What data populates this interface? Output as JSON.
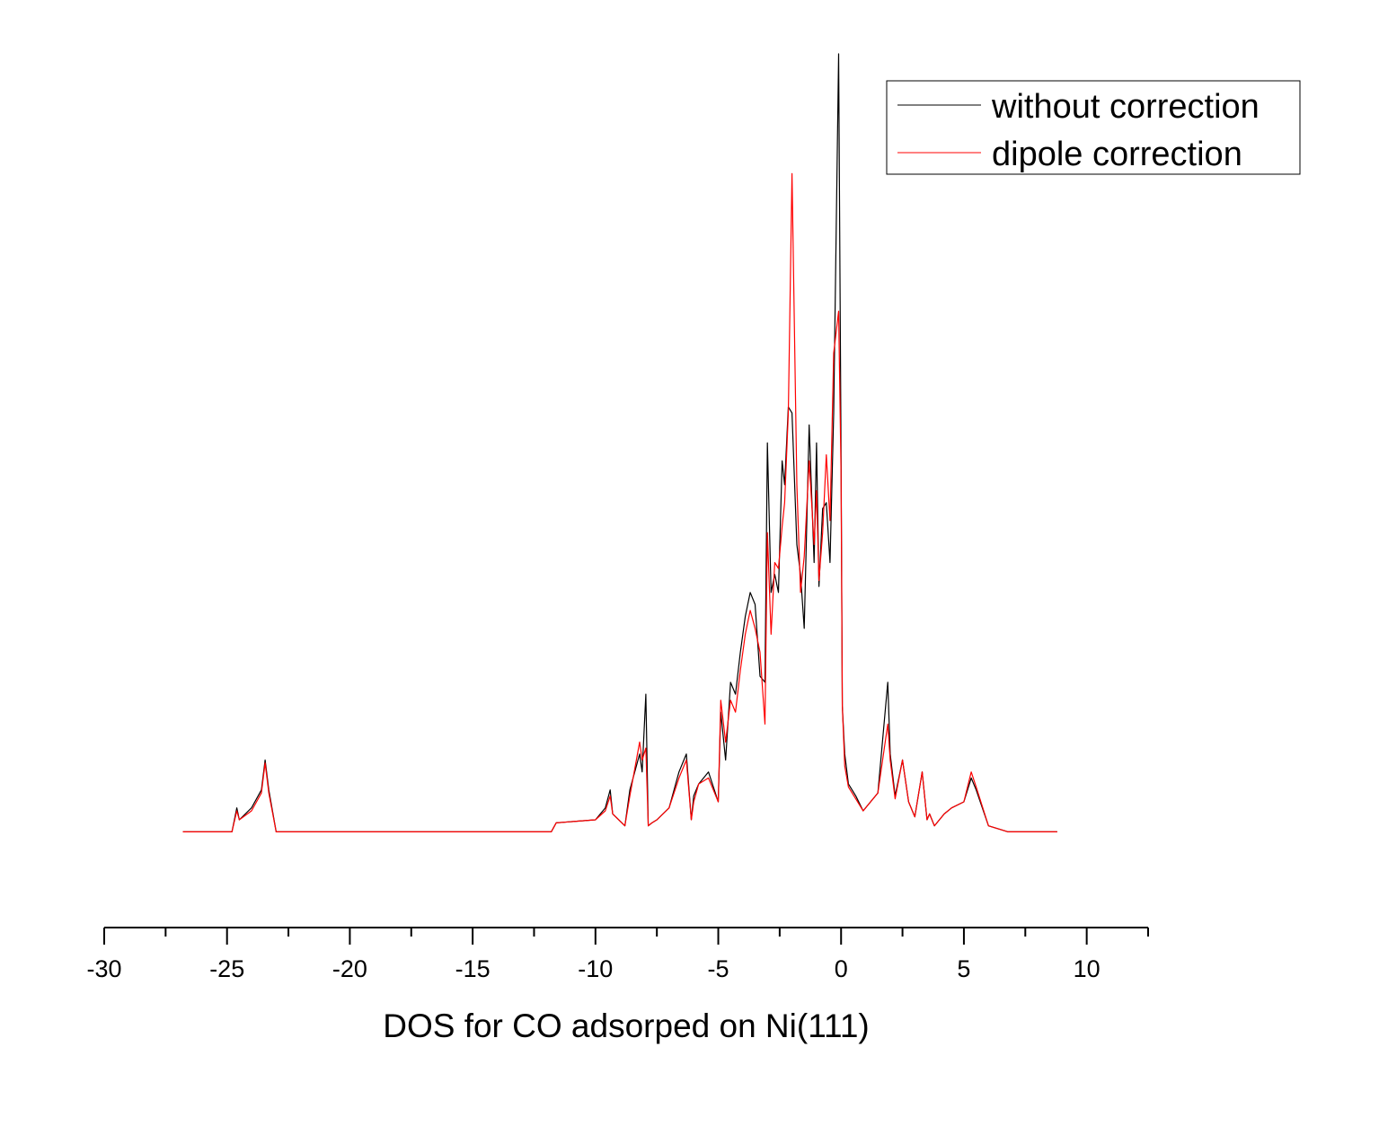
{
  "chart_data": {
    "type": "line",
    "title": "",
    "xlabel": "DOS for CO adsorped on Ni(111)",
    "ylabel": "",
    "xlim": [
      -30,
      12.5
    ],
    "ylim": [
      -0.16,
      1.3
    ],
    "xticks": [
      -30,
      -25,
      -20,
      -15,
      -10,
      -5,
      0,
      5,
      10
    ],
    "xtick_labels": [
      "-30",
      "-25",
      "-20",
      "-15",
      "-10",
      "-5",
      "0",
      "5",
      "10"
    ],
    "grid": false,
    "y_axis_visible": false,
    "legend": {
      "position": "top-right"
    },
    "series": [
      {
        "name": "without correction",
        "color": "#000000",
        "x": [
          -26.8,
          -24.8,
          -24.6,
          -24.5,
          -24.0,
          -23.6,
          -23.45,
          -23.3,
          -23.0,
          -11.8,
          -11.6,
          -10.0,
          -9.6,
          -9.4,
          -9.3,
          -8.8,
          -8.6,
          -8.2,
          -8.1,
          -7.95,
          -7.85,
          -7.7,
          -7.5,
          -7.0,
          -6.6,
          -6.3,
          -6.1,
          -6.0,
          -5.8,
          -5.4,
          -5.0,
          -4.9,
          -4.7,
          -4.5,
          -4.3,
          -4.1,
          -3.9,
          -3.7,
          -3.5,
          -3.3,
          -3.1,
          -3.0,
          -2.85,
          -2.7,
          -2.55,
          -2.4,
          -2.3,
          -2.15,
          -2.0,
          -1.8,
          -1.65,
          -1.5,
          -1.3,
          -1.1,
          -1.0,
          -0.9,
          -0.75,
          -0.6,
          -0.45,
          -0.3,
          -0.1,
          0.0,
          0.05,
          0.15,
          0.3,
          0.6,
          0.9,
          1.5,
          1.9,
          2.0,
          2.2,
          2.5,
          2.75,
          3.0,
          3.3,
          3.5,
          3.6,
          3.8,
          4.2,
          4.5,
          5.0,
          5.3,
          5.5,
          6.0,
          6.8,
          8.8
        ],
        "y": [
          0.0,
          0.0,
          0.04,
          0.02,
          0.04,
          0.07,
          0.12,
          0.07,
          0.0,
          0.0,
          0.015,
          0.02,
          0.04,
          0.07,
          0.03,
          0.01,
          0.07,
          0.13,
          0.1,
          0.23,
          0.01,
          0.015,
          0.02,
          0.04,
          0.1,
          0.13,
          0.02,
          0.06,
          0.08,
          0.1,
          0.05,
          0.2,
          0.12,
          0.25,
          0.23,
          0.3,
          0.36,
          0.4,
          0.38,
          0.26,
          0.25,
          0.65,
          0.4,
          0.43,
          0.4,
          0.62,
          0.58,
          0.71,
          0.7,
          0.48,
          0.43,
          0.34,
          0.68,
          0.45,
          0.65,
          0.41,
          0.54,
          0.55,
          0.45,
          0.7,
          1.3,
          0.63,
          0.21,
          0.13,
          0.08,
          0.06,
          0.035,
          0.065,
          0.25,
          0.13,
          0.06,
          0.12,
          0.05,
          0.025,
          0.1,
          0.02,
          0.03,
          0.01,
          0.03,
          0.04,
          0.05,
          0.09,
          0.07,
          0.01,
          0.0,
          0.0
        ]
      },
      {
        "name": "dipole correction",
        "color": "#ff0000",
        "x": [
          -26.8,
          -24.8,
          -24.6,
          -24.5,
          -24.0,
          -23.6,
          -23.45,
          -23.3,
          -23.0,
          -11.8,
          -11.6,
          -10.0,
          -9.6,
          -9.4,
          -9.3,
          -8.8,
          -8.6,
          -8.2,
          -8.1,
          -7.95,
          -7.85,
          -7.7,
          -7.5,
          -7.0,
          -6.6,
          -6.3,
          -6.1,
          -6.0,
          -5.8,
          -5.4,
          -5.0,
          -4.9,
          -4.7,
          -4.5,
          -4.3,
          -4.1,
          -3.9,
          -3.7,
          -3.5,
          -3.3,
          -3.1,
          -3.0,
          -2.85,
          -2.7,
          -2.55,
          -2.4,
          -2.3,
          -2.15,
          -2.0,
          -1.8,
          -1.65,
          -1.5,
          -1.3,
          -1.1,
          -1.0,
          -0.9,
          -0.75,
          -0.6,
          -0.45,
          -0.3,
          -0.1,
          0.0,
          0.05,
          0.15,
          0.3,
          0.6,
          0.9,
          1.5,
          1.9,
          2.0,
          2.2,
          2.5,
          2.75,
          3.0,
          3.3,
          3.5,
          3.6,
          3.8,
          4.2,
          4.5,
          5.0,
          5.3,
          5.5,
          6.0,
          6.8,
          8.8
        ],
        "y": [
          0.0,
          0.0,
          0.035,
          0.02,
          0.035,
          0.065,
          0.115,
          0.065,
          0.0,
          0.0,
          0.015,
          0.02,
          0.035,
          0.06,
          0.03,
          0.01,
          0.06,
          0.15,
          0.12,
          0.14,
          0.01,
          0.015,
          0.02,
          0.04,
          0.09,
          0.12,
          0.02,
          0.05,
          0.08,
          0.09,
          0.05,
          0.22,
          0.15,
          0.22,
          0.2,
          0.27,
          0.33,
          0.37,
          0.34,
          0.3,
          0.18,
          0.5,
          0.33,
          0.45,
          0.44,
          0.51,
          0.55,
          0.7,
          1.1,
          0.58,
          0.4,
          0.46,
          0.62,
          0.48,
          0.57,
          0.42,
          0.5,
          0.63,
          0.52,
          0.8,
          0.87,
          0.6,
          0.21,
          0.11,
          0.075,
          0.055,
          0.035,
          0.065,
          0.18,
          0.12,
          0.055,
          0.12,
          0.05,
          0.025,
          0.1,
          0.02,
          0.03,
          0.01,
          0.03,
          0.04,
          0.05,
          0.1,
          0.075,
          0.01,
          0.0,
          0.0
        ]
      }
    ]
  }
}
